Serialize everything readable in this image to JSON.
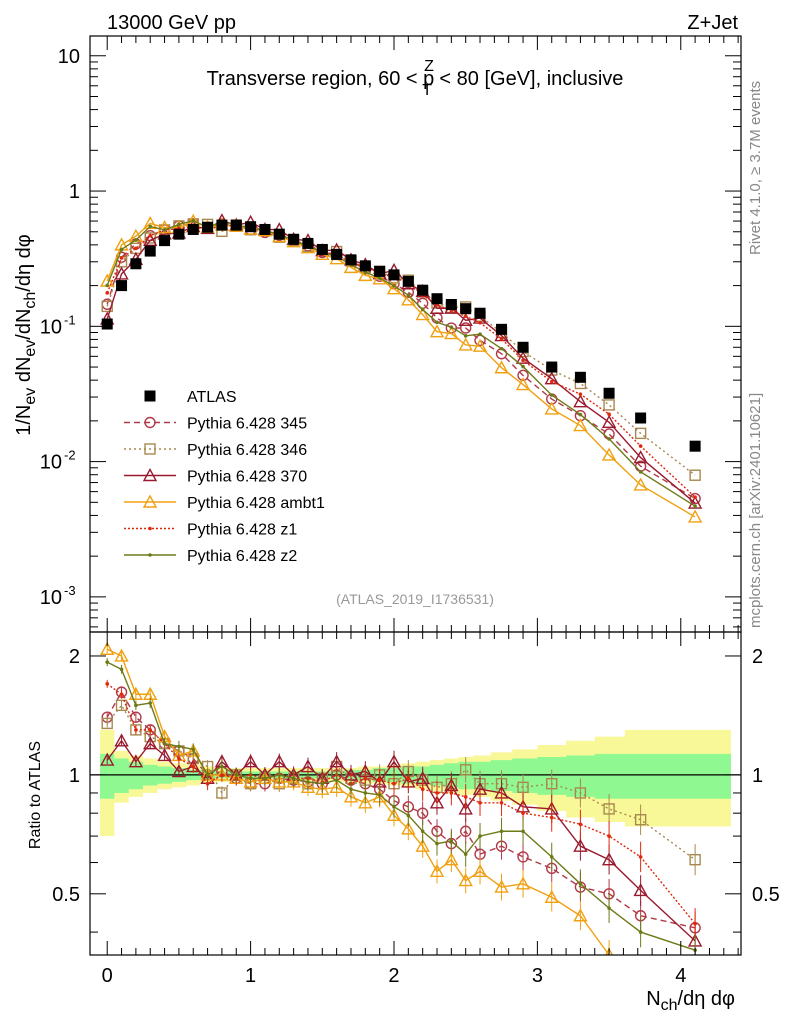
{
  "header": {
    "left": "13000 GeV pp",
    "right": "Z+Jet",
    "title_pre": "Transverse region, 60 < p",
    "title_sup": "Z",
    "title_sub": "T",
    "title_post": " < 80 [GeV], inclusive",
    "analysis": "(ATLAS_2019_I1736531)",
    "rivet": "Rivet 4.1.0, ≥ 3.7M events",
    "mcplots": "mcplots.cern.ch [arXiv:2401.10621]"
  },
  "axes": {
    "ylabel_top": "1/N_ev dN_ev/dN_ch/dη dφ",
    "ylabel_ratio": "Ratio to ATLAS",
    "xlabel": "N_ch/dη dφ",
    "xticks": [
      "0",
      "1",
      "2",
      "3",
      "4"
    ],
    "ratio_ticks": [
      "0.5",
      "1",
      "2"
    ]
  },
  "colors": {
    "data": "#000000",
    "p345": "#b03a48",
    "p346": "#a8884e",
    "p370": "#991a2e",
    "ambt1": "#f0a010",
    "z1": "#e0280a",
    "z2": "#6e7a18",
    "band_inner": "#90f890",
    "band_outer": "#f8f898"
  },
  "chart_data": {
    "type": "line",
    "title": "Transverse region, 60 < pT^Z < 80 [GeV], inclusive",
    "xlabel": "N_ch/dη dφ",
    "ylabel": "1/N_ev dN_ev/dN_ch/dη dφ",
    "yscale": "log",
    "xlim": [
      -0.12,
      4.42
    ],
    "ylim": [
      0.00055,
      14
    ],
    "ratio_ylim": [
      0.35,
      2.3
    ],
    "x": [
      0.0,
      0.1,
      0.2,
      0.3,
      0.4,
      0.5,
      0.6,
      0.7,
      0.8,
      0.9,
      1.0,
      1.1,
      1.2,
      1.3,
      1.4,
      1.5,
      1.6,
      1.7,
      1.8,
      1.9,
      2.0,
      2.1,
      2.2,
      2.3,
      2.4,
      2.5,
      2.6,
      2.75,
      2.9,
      3.1,
      3.3,
      3.5,
      3.72,
      4.1
    ],
    "data": {
      "name": "ATLAS",
      "values": [
        0.104,
        0.2,
        0.29,
        0.36,
        0.43,
        0.48,
        0.52,
        0.54,
        0.56,
        0.56,
        0.545,
        0.52,
        0.48,
        0.44,
        0.41,
        0.37,
        0.34,
        0.31,
        0.28,
        0.255,
        0.24,
        0.215,
        0.185,
        0.16,
        0.145,
        0.135,
        0.125,
        0.095,
        0.07,
        0.05,
        0.042,
        0.032,
        0.021,
        0.013
      ]
    },
    "band": {
      "inner_lo": [
        0.87,
        0.9,
        0.92,
        0.94,
        0.95,
        0.96,
        0.97,
        0.97,
        0.98,
        0.98,
        0.98,
        0.98,
        0.98,
        0.98,
        0.98,
        0.98,
        0.98,
        0.97,
        0.97,
        0.96,
        0.96,
        0.95,
        0.95,
        0.94,
        0.93,
        0.92,
        0.92,
        0.91,
        0.9,
        0.89,
        0.88,
        0.87,
        0.87,
        0.87
      ],
      "inner_hi": [
        1.13,
        1.1,
        1.08,
        1.06,
        1.05,
        1.04,
        1.03,
        1.03,
        1.02,
        1.02,
        1.02,
        1.02,
        1.02,
        1.02,
        1.02,
        1.02,
        1.02,
        1.03,
        1.03,
        1.04,
        1.04,
        1.05,
        1.05,
        1.06,
        1.07,
        1.08,
        1.08,
        1.09,
        1.1,
        1.11,
        1.12,
        1.13,
        1.13,
        1.13
      ],
      "outer_lo": [
        0.7,
        0.85,
        0.88,
        0.9,
        0.92,
        0.93,
        0.94,
        0.95,
        0.96,
        0.96,
        0.96,
        0.96,
        0.96,
        0.96,
        0.96,
        0.96,
        0.96,
        0.96,
        0.95,
        0.95,
        0.94,
        0.93,
        0.92,
        0.91,
        0.9,
        0.89,
        0.88,
        0.86,
        0.84,
        0.81,
        0.78,
        0.76,
        0.74,
        0.74
      ],
      "outer_hi": [
        1.3,
        1.15,
        1.12,
        1.1,
        1.08,
        1.07,
        1.06,
        1.05,
        1.04,
        1.04,
        1.04,
        1.04,
        1.04,
        1.04,
        1.04,
        1.04,
        1.04,
        1.04,
        1.05,
        1.05,
        1.06,
        1.07,
        1.08,
        1.09,
        1.1,
        1.11,
        1.12,
        1.14,
        1.16,
        1.19,
        1.22,
        1.25,
        1.3,
        1.3
      ]
    },
    "series": [
      {
        "name": "Pythia 6.428 345",
        "key": "p345",
        "marker": "circle",
        "dash": "6,4",
        "ratio": [
          1.4,
          1.62,
          1.4,
          1.3,
          1.2,
          1.15,
          1.1,
          1.0,
          1.02,
          0.98,
          0.95,
          0.95,
          0.98,
          0.97,
          0.96,
          0.95,
          1.0,
          0.97,
          0.95,
          0.92,
          0.86,
          0.83,
          0.8,
          0.72,
          0.67,
          0.72,
          0.63,
          0.66,
          0.62,
          0.58,
          0.52,
          0.5,
          0.44,
          0.41
        ]
      },
      {
        "name": "Pythia 6.428 346",
        "key": "p346",
        "marker": "square",
        "dash": "2,3",
        "ratio": [
          1.35,
          1.5,
          1.3,
          1.25,
          1.2,
          1.15,
          1.1,
          1.05,
          0.9,
          1.0,
          0.95,
          0.98,
          0.95,
          0.98,
          0.95,
          0.98,
          1.05,
          0.98,
          0.97,
          1.0,
          0.95,
          1.02,
          0.97,
          0.93,
          0.95,
          1.03,
          0.95,
          0.95,
          0.93,
          0.95,
          0.9,
          0.82,
          0.77,
          0.61
        ]
      },
      {
        "name": "Pythia 6.428 370",
        "key": "p370",
        "marker": "triangle",
        "dash": "",
        "ratio": [
          1.09,
          1.22,
          1.08,
          1.2,
          1.12,
          1.02,
          1.05,
          0.98,
          1.08,
          1.0,
          1.08,
          1.0,
          1.08,
          1.0,
          1.05,
          0.98,
          1.08,
          1.0,
          1.02,
          0.96,
          1.08,
          0.96,
          0.98,
          0.85,
          0.94,
          0.82,
          0.92,
          0.9,
          0.83,
          0.82,
          0.66,
          0.61,
          0.51,
          0.38
        ]
      },
      {
        "name": "Pythia 6.428 ambt1",
        "key": "ambt1",
        "marker": "triangle",
        "dash": "",
        "ratio": [
          2.08,
          2.0,
          1.6,
          1.6,
          1.25,
          1.12,
          1.15,
          1.0,
          1.0,
          0.98,
          0.96,
          0.98,
          0.96,
          0.96,
          0.93,
          0.92,
          0.93,
          0.88,
          0.85,
          0.88,
          0.79,
          0.73,
          0.66,
          0.57,
          0.61,
          0.54,
          0.57,
          0.52,
          0.53,
          0.49,
          0.44,
          0.35,
          0.32,
          0.3
        ]
      },
      {
        "name": "Pythia 6.428 z1",
        "key": "z1",
        "marker": "dot",
        "dash": "2,2",
        "ratio": [
          1.7,
          1.6,
          1.3,
          1.3,
          1.2,
          1.1,
          1.05,
          0.95,
          1.0,
          0.98,
          1.0,
          0.98,
          1.0,
          0.98,
          0.98,
          0.96,
          1.0,
          0.95,
          0.98,
          0.97,
          0.95,
          0.98,
          0.92,
          0.9,
          0.9,
          0.88,
          0.85,
          0.85,
          0.8,
          0.78,
          0.75,
          0.7,
          0.62,
          0.42
        ]
      },
      {
        "name": "Pythia 6.428 z2",
        "key": "z2",
        "marker": "dot",
        "dash": "",
        "ratio": [
          1.93,
          1.85,
          1.5,
          1.52,
          1.2,
          1.18,
          1.16,
          1.0,
          1.05,
          1.0,
          0.98,
          0.98,
          1.0,
          0.98,
          0.96,
          0.95,
          0.97,
          0.92,
          0.9,
          0.89,
          0.83,
          0.79,
          0.72,
          0.67,
          0.68,
          0.63,
          0.7,
          0.72,
          0.72,
          0.62,
          0.53,
          0.46,
          0.4,
          0.36
        ]
      }
    ],
    "legend": "left-center"
  }
}
